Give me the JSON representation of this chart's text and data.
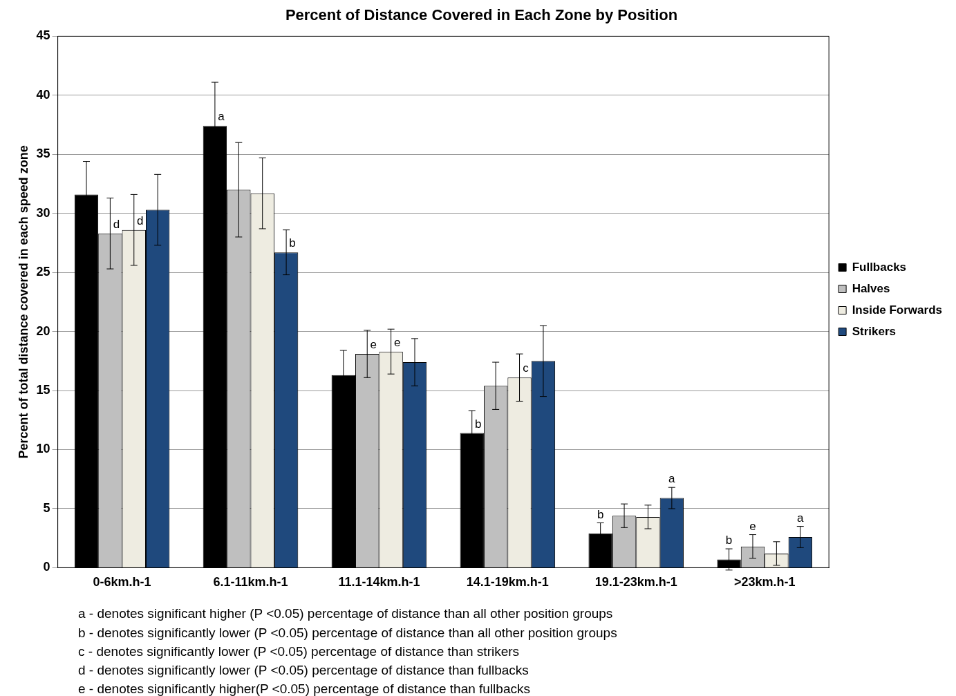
{
  "chart_data": {
    "type": "bar",
    "title": "Percent of Distance Covered in Each Zone by Position",
    "ylabel": "Percent of total distance covered in each speed zone",
    "categories": [
      "0-6km.h-1",
      "6.1-11km.h-1",
      "11.1-14km.h-1",
      "14.1-19km.h-1",
      "19.1-23km.h-1",
      ">23km.h-1"
    ],
    "series": [
      {
        "name": "Fullbacks",
        "color": "#000000",
        "values": [
          31.6,
          37.4,
          16.3,
          11.4,
          2.9,
          0.7
        ],
        "errors": [
          2.8,
          3.7,
          2.1,
          1.9,
          0.9,
          0.9
        ],
        "value_labels": [
          null,
          "a",
          null,
          "b",
          "b",
          "b"
        ]
      },
      {
        "name": "Halves",
        "color": "#bfbfbf",
        "values": [
          28.3,
          32.0,
          18.1,
          15.4,
          4.4,
          1.8
        ],
        "errors": [
          3.0,
          4.0,
          2.0,
          2.0,
          1.0,
          1.0
        ],
        "value_labels": [
          "d",
          null,
          "e",
          null,
          null,
          "e"
        ]
      },
      {
        "name": "Inside Forwards",
        "color": "#eeece1",
        "values": [
          28.6,
          31.7,
          18.3,
          16.1,
          4.3,
          1.2
        ],
        "errors": [
          3.0,
          3.0,
          1.9,
          2.0,
          1.0,
          1.0
        ],
        "value_labels": [
          "d",
          null,
          "e",
          "c",
          null,
          null
        ]
      },
      {
        "name": "Strikers",
        "color": "#1f497d",
        "values": [
          30.3,
          26.7,
          17.4,
          17.5,
          5.9,
          2.6
        ],
        "errors": [
          3.0,
          1.9,
          2.0,
          3.0,
          0.9,
          0.9
        ],
        "value_labels": [
          null,
          "b",
          null,
          null,
          "a",
          "a"
        ]
      }
    ],
    "ylim": [
      0,
      45
    ],
    "yticks": [
      0,
      5,
      10,
      15,
      20,
      25,
      30,
      35,
      40,
      45
    ],
    "grid": "y",
    "legend": "right",
    "annotations": [
      "a - denotes significant higher (P <0.05) percentage of distance than all other position groups",
      "b - denotes significantly lower (P <0.05) percentage of distance than all other position groups",
      "c - denotes significantly lower (P <0.05) percentage of distance than strikers",
      "d - denotes significantly lower (P <0.05) percentage of distance than fullbacks",
      "e - denotes significantly higher(P <0.05) percentage of distance than fullbacks"
    ]
  }
}
